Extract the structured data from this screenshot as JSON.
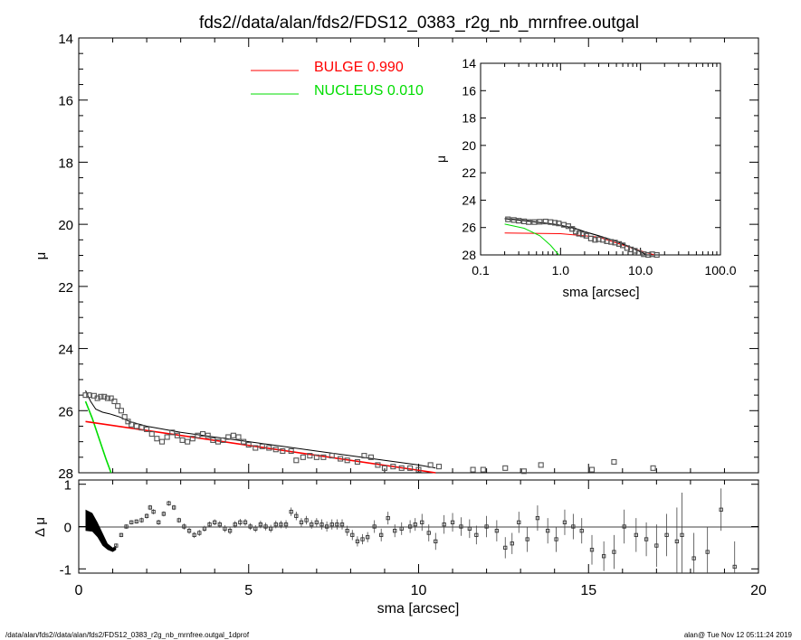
{
  "title": "fds2//data/alan/fds2/FDS12_0383_r2g_nb_mrnfree.outgal",
  "footer": {
    "path": "/data/alan/fds2//data/alan/fds2/FDS12_0383_r2g_nb_mrnfree.outgal_1dprof",
    "stamp": "alan@  Tue Nov 12 05:11:24 2019"
  },
  "colors": {
    "bulge": "#ff0000",
    "nucleus": "#00dd00",
    "model": "#000000",
    "data": "#555555"
  },
  "chart_data": [
    {
      "id": "main",
      "type": "scatter",
      "title": "fds2//data/alan/fds2/FDS12_0383_r2g_nb_mrnfree.outgal",
      "ylabel": "μ",
      "xlabel": "",
      "xlim": [
        0,
        20
      ],
      "ylim": [
        28,
        14
      ],
      "yticks": [
        "14",
        "16",
        "18",
        "20",
        "22",
        "24",
        "26",
        "28"
      ],
      "yticks_values": [
        14,
        16,
        18,
        20,
        22,
        24,
        26,
        28
      ],
      "legend": [
        {
          "label": "BULGE  0.990",
          "color": "#ff0000"
        },
        {
          "label": "NUCLEUS  0.010",
          "color": "#00dd00"
        }
      ],
      "legend_position": "top-center",
      "points": [
        [
          0.2,
          25.5
        ],
        [
          0.3,
          25.5
        ],
        [
          0.45,
          25.52
        ],
        [
          0.55,
          25.6
        ],
        [
          0.65,
          25.55
        ],
        [
          0.75,
          25.55
        ],
        [
          0.85,
          25.6
        ],
        [
          0.95,
          25.6
        ],
        [
          1.05,
          25.7
        ],
        [
          1.15,
          25.85
        ],
        [
          1.25,
          26.0
        ],
        [
          1.35,
          26.2
        ],
        [
          1.45,
          26.35
        ],
        [
          1.55,
          26.45
        ],
        [
          1.7,
          26.5
        ],
        [
          1.85,
          26.55
        ],
        [
          2.0,
          26.6
        ],
        [
          2.15,
          26.75
        ],
        [
          2.3,
          26.9
        ],
        [
          2.45,
          27.0
        ],
        [
          2.6,
          26.85
        ],
        [
          2.75,
          26.7
        ],
        [
          2.9,
          26.8
        ],
        [
          3.05,
          26.95
        ],
        [
          3.2,
          27.0
        ],
        [
          3.35,
          26.9
        ],
        [
          3.5,
          26.8
        ],
        [
          3.65,
          26.75
        ],
        [
          3.8,
          26.8
        ],
        [
          3.95,
          26.95
        ],
        [
          4.1,
          27.0
        ],
        [
          4.25,
          26.95
        ],
        [
          4.4,
          26.85
        ],
        [
          4.55,
          26.8
        ],
        [
          4.7,
          26.85
        ],
        [
          4.85,
          27.0
        ],
        [
          5.0,
          27.1
        ],
        [
          5.2,
          27.2
        ],
        [
          5.4,
          27.15
        ],
        [
          5.6,
          27.2
        ],
        [
          5.8,
          27.25
        ],
        [
          6.0,
          27.3
        ],
        [
          6.25,
          27.3
        ],
        [
          6.4,
          27.6
        ],
        [
          6.6,
          27.5
        ],
        [
          6.8,
          27.45
        ],
        [
          7.0,
          27.5
        ],
        [
          7.2,
          27.5
        ],
        [
          7.45,
          27.45
        ],
        [
          7.7,
          27.55
        ],
        [
          7.9,
          27.6
        ],
        [
          8.2,
          27.65
        ],
        [
          8.4,
          27.45
        ],
        [
          8.6,
          27.5
        ],
        [
          8.8,
          27.75
        ],
        [
          9.0,
          27.85
        ],
        [
          9.25,
          27.8
        ],
        [
          9.5,
          27.85
        ],
        [
          9.75,
          27.85
        ],
        [
          10.0,
          27.9
        ],
        [
          10.35,
          27.75
        ],
        [
          10.6,
          27.8
        ],
        [
          11.6,
          27.9
        ],
        [
          11.9,
          27.9
        ],
        [
          12.55,
          27.85
        ],
        [
          13.1,
          27.95
        ],
        [
          13.6,
          27.75
        ],
        [
          15.1,
          27.9
        ],
        [
          15.75,
          27.65
        ],
        [
          16.9,
          27.85
        ]
      ],
      "bulge_line": [
        [
          0.2,
          26.35
        ],
        [
          10.5,
          28.0
        ]
      ],
      "nucleus_curve": [
        [
          0.2,
          25.7
        ],
        [
          0.4,
          26.25
        ],
        [
          0.6,
          26.9
        ],
        [
          0.8,
          27.55
        ],
        [
          0.95,
          28.0
        ]
      ],
      "model_curve": [
        [
          0.2,
          25.35
        ],
        [
          0.35,
          25.7
        ],
        [
          0.5,
          25.95
        ],
        [
          0.7,
          26.05
        ],
        [
          0.9,
          26.1
        ],
        [
          1.2,
          26.2
        ],
        [
          1.5,
          26.35
        ],
        [
          2.0,
          26.5
        ],
        [
          3.0,
          26.7
        ],
        [
          4.0,
          26.85
        ],
        [
          5.0,
          27.0
        ],
        [
          6.0,
          27.15
        ],
        [
          7.0,
          27.3
        ],
        [
          8.0,
          27.45
        ],
        [
          9.0,
          27.6
        ],
        [
          10.0,
          27.75
        ],
        [
          10.5,
          27.85
        ]
      ]
    },
    {
      "id": "inset",
      "type": "scatter",
      "ylabel": "μ",
      "xlabel": "sma [arcsec]",
      "xscale": "log",
      "xlim": [
        0.1,
        100.0
      ],
      "ylim": [
        28,
        14
      ],
      "xticks": [
        "0.1",
        "1.0",
        "10.0",
        "100.0"
      ],
      "xticks_values": [
        0.1,
        1.0,
        10.0,
        100.0
      ],
      "yticks": [
        "14",
        "16",
        "18",
        "20",
        "22",
        "24",
        "26",
        "28"
      ],
      "yticks_values": [
        14,
        16,
        18,
        20,
        22,
        24,
        26,
        28
      ],
      "bulge_line": [
        [
          0.2,
          26.4
        ],
        [
          1.0,
          26.45
        ],
        [
          3.0,
          26.7
        ],
        [
          10.0,
          27.7
        ],
        [
          15.0,
          28.0
        ]
      ],
      "nucleus_curve": [
        [
          0.2,
          25.75
        ],
        [
          0.35,
          26.05
        ],
        [
          0.55,
          26.6
        ],
        [
          0.75,
          27.3
        ],
        [
          0.95,
          28.0
        ]
      ],
      "model_curve": [
        [
          0.2,
          25.35
        ],
        [
          0.3,
          25.45
        ],
        [
          0.5,
          25.6
        ],
        [
          0.8,
          25.75
        ],
        [
          1.0,
          25.85
        ],
        [
          1.5,
          26.05
        ],
        [
          2.0,
          26.3
        ],
        [
          3.0,
          26.6
        ],
        [
          5.0,
          27.0
        ],
        [
          8.0,
          27.5
        ],
        [
          12.0,
          28.0
        ]
      ],
      "points": [
        [
          0.22,
          25.4
        ],
        [
          0.26,
          25.45
        ],
        [
          0.3,
          25.5
        ],
        [
          0.35,
          25.55
        ],
        [
          0.4,
          25.6
        ],
        [
          0.47,
          25.6
        ],
        [
          0.55,
          25.58
        ],
        [
          0.65,
          25.56
        ],
        [
          0.75,
          25.6
        ],
        [
          0.85,
          25.65
        ],
        [
          0.95,
          25.7
        ],
        [
          1.1,
          25.8
        ],
        [
          1.25,
          25.9
        ],
        [
          1.4,
          26.1
        ],
        [
          1.55,
          26.3
        ],
        [
          1.7,
          26.45
        ],
        [
          1.9,
          26.5
        ],
        [
          2.1,
          26.6
        ],
        [
          2.4,
          26.8
        ],
        [
          2.7,
          26.9
        ],
        [
          3.0,
          26.85
        ],
        [
          3.4,
          26.9
        ],
        [
          3.8,
          27.0
        ],
        [
          4.3,
          27.05
        ],
        [
          4.8,
          27.1
        ],
        [
          5.4,
          27.2
        ],
        [
          6.0,
          27.3
        ],
        [
          6.8,
          27.5
        ],
        [
          7.6,
          27.6
        ],
        [
          8.5,
          27.7
        ],
        [
          9.5,
          27.85
        ],
        [
          11.0,
          27.95
        ],
        [
          12.5,
          28.0
        ],
        [
          14.0,
          27.95
        ],
        [
          16.0,
          28.0
        ]
      ]
    },
    {
      "id": "residuals",
      "type": "scatter",
      "ylabel": "Δ μ",
      "xlabel": "sma [arcsec]",
      "xlim": [
        0,
        20
      ],
      "ylim": [
        -1.1,
        1.1
      ],
      "xticks": [
        "0",
        "5",
        "10",
        "15",
        "20"
      ],
      "xticks_values": [
        0,
        5,
        10,
        15,
        20
      ],
      "yticks": [
        "-1",
        "0",
        "1"
      ],
      "yticks_values": [
        -1,
        0,
        1
      ],
      "band": [
        [
          0.2,
          0.4,
          -0.1
        ],
        [
          0.4,
          0.32,
          -0.12
        ],
        [
          0.55,
          0.1,
          -0.25
        ],
        [
          0.7,
          -0.15,
          -0.45
        ],
        [
          0.85,
          -0.4,
          -0.55
        ],
        [
          1.0,
          -0.5,
          -0.6
        ],
        [
          1.1,
          -0.45,
          -0.55
        ]
      ],
      "points": [
        [
          1.1,
          -0.45,
          0.05
        ],
        [
          1.25,
          -0.2,
          0.05
        ],
        [
          1.4,
          0.0,
          0.05
        ],
        [
          1.55,
          0.1,
          0.05
        ],
        [
          1.7,
          0.12,
          0.05
        ],
        [
          1.85,
          0.15,
          0.06
        ],
        [
          2.0,
          0.25,
          0.06
        ],
        [
          2.1,
          0.45,
          0.06
        ],
        [
          2.2,
          0.35,
          0.06
        ],
        [
          2.35,
          0.1,
          0.06
        ],
        [
          2.5,
          0.3,
          0.06
        ],
        [
          2.65,
          0.55,
          0.06
        ],
        [
          2.8,
          0.45,
          0.06
        ],
        [
          2.95,
          0.15,
          0.06
        ],
        [
          3.1,
          0.0,
          0.07
        ],
        [
          3.25,
          -0.1,
          0.07
        ],
        [
          3.4,
          -0.2,
          0.07
        ],
        [
          3.55,
          -0.15,
          0.07
        ],
        [
          3.7,
          -0.05,
          0.07
        ],
        [
          3.85,
          0.05,
          0.07
        ],
        [
          4.0,
          0.1,
          0.07
        ],
        [
          4.15,
          0.05,
          0.08
        ],
        [
          4.3,
          -0.05,
          0.08
        ],
        [
          4.45,
          -0.1,
          0.08
        ],
        [
          4.6,
          0.05,
          0.08
        ],
        [
          4.75,
          0.1,
          0.08
        ],
        [
          4.9,
          0.1,
          0.08
        ],
        [
          5.05,
          0.0,
          0.08
        ],
        [
          5.2,
          -0.05,
          0.08
        ],
        [
          5.35,
          0.05,
          0.09
        ],
        [
          5.5,
          0.0,
          0.09
        ],
        [
          5.65,
          -0.05,
          0.09
        ],
        [
          5.8,
          0.05,
          0.09
        ],
        [
          5.95,
          0.05,
          0.09
        ],
        [
          6.1,
          0.05,
          0.1
        ],
        [
          6.25,
          0.35,
          0.1
        ],
        [
          6.4,
          0.25,
          0.1
        ],
        [
          6.55,
          0.1,
          0.1
        ],
        [
          6.7,
          0.15,
          0.1
        ],
        [
          6.85,
          0.05,
          0.1
        ],
        [
          7.0,
          0.1,
          0.1
        ],
        [
          7.15,
          0.05,
          0.12
        ],
        [
          7.3,
          0.0,
          0.12
        ],
        [
          7.45,
          0.05,
          0.12
        ],
        [
          7.6,
          0.05,
          0.12
        ],
        [
          7.75,
          0.05,
          0.12
        ],
        [
          7.9,
          -0.1,
          0.12
        ],
        [
          8.05,
          -0.2,
          0.12
        ],
        [
          8.2,
          -0.35,
          0.12
        ],
        [
          8.35,
          -0.3,
          0.12
        ],
        [
          8.5,
          -0.25,
          0.12
        ],
        [
          8.7,
          0.0,
          0.15
        ],
        [
          8.9,
          -0.2,
          0.15
        ],
        [
          9.1,
          0.2,
          0.15
        ],
        [
          9.3,
          -0.1,
          0.15
        ],
        [
          9.5,
          -0.05,
          0.15
        ],
        [
          9.75,
          0.0,
          0.15
        ],
        [
          9.9,
          0.05,
          0.15
        ],
        [
          10.1,
          0.1,
          0.2
        ],
        [
          10.3,
          -0.15,
          0.2
        ],
        [
          10.5,
          -0.35,
          0.2
        ],
        [
          10.75,
          0.05,
          0.22
        ],
        [
          11.0,
          0.1,
          0.22
        ],
        [
          11.25,
          0.0,
          0.22
        ],
        [
          11.5,
          -0.05,
          0.22
        ],
        [
          11.7,
          -0.2,
          0.22
        ],
        [
          12.0,
          0.0,
          0.25
        ],
        [
          12.3,
          -0.1,
          0.25
        ],
        [
          12.55,
          -0.5,
          0.25
        ],
        [
          12.75,
          -0.4,
          0.25
        ],
        [
          12.95,
          0.1,
          0.25
        ],
        [
          13.2,
          -0.3,
          0.3
        ],
        [
          13.5,
          0.2,
          0.3
        ],
        [
          13.8,
          -0.1,
          0.3
        ],
        [
          14.05,
          -0.3,
          0.3
        ],
        [
          14.3,
          0.1,
          0.3
        ],
        [
          14.55,
          0.0,
          0.3
        ],
        [
          14.8,
          -0.1,
          0.3
        ],
        [
          15.1,
          -0.55,
          0.35
        ],
        [
          15.45,
          -0.7,
          0.35
        ],
        [
          15.75,
          -0.6,
          0.4
        ],
        [
          16.05,
          0.0,
          0.4
        ],
        [
          16.4,
          -0.2,
          0.4
        ],
        [
          16.7,
          -0.3,
          0.4
        ],
        [
          17.0,
          -0.45,
          0.5
        ],
        [
          17.3,
          -0.2,
          0.5
        ],
        [
          17.6,
          -0.35,
          0.8
        ],
        [
          17.75,
          -0.2,
          1.0
        ],
        [
          18.1,
          -0.75,
          0.6
        ],
        [
          18.5,
          -0.6,
          0.6
        ],
        [
          18.9,
          0.4,
          0.5
        ],
        [
          19.3,
          -0.95,
          0.6
        ]
      ]
    }
  ]
}
